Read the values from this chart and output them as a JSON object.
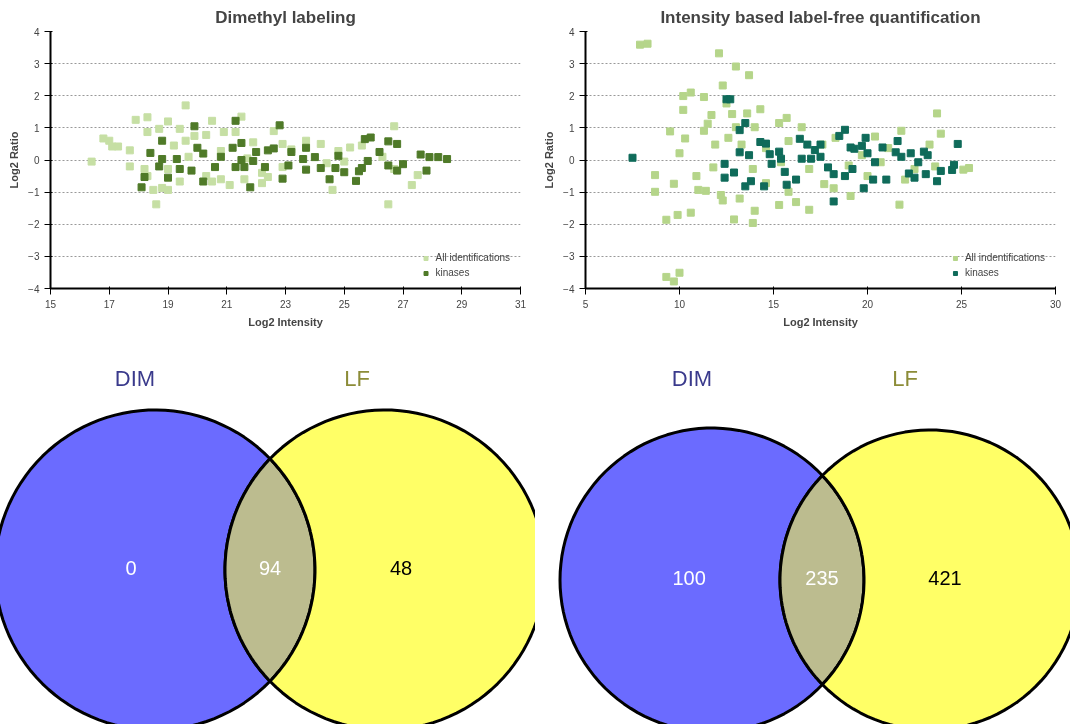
{
  "chart_data": [
    {
      "type": "scatter",
      "title": "Dimethyl labeling",
      "xlabel": "Log2 Intensity",
      "ylabel": "Log2 Ratio",
      "xlim": [
        15,
        31
      ],
      "xticks": [
        15,
        17,
        19,
        21,
        23,
        25,
        27,
        29,
        31
      ],
      "ylim": [
        -4,
        4
      ],
      "yticks": [
        -4,
        -3,
        -2,
        -1,
        0,
        1,
        2,
        3,
        4
      ],
      "grid": "y",
      "legend": "bottom right",
      "marker": "square",
      "series": [
        {
          "name": "All identifications",
          "color": "#c6dfa4",
          "x": [
            16.4,
            16.8,
            17.0,
            17.1,
            17.3,
            17.7,
            17.7,
            17.9,
            18.3,
            18.3,
            18.7,
            18.6,
            18.5,
            18.8,
            19.0,
            19.0,
            19.4,
            19.6,
            19.4,
            19.6,
            19.9,
            20.3,
            20.5,
            20.3,
            20.5,
            20.8,
            20.9,
            21.1,
            21.3,
            21.5,
            21.6,
            21.9,
            22.2,
            22.4,
            22.6,
            22.9,
            22.9,
            23.2,
            23.7,
            24.2,
            24.6,
            24.8,
            25.0,
            25.2,
            25.6,
            26.3,
            26.5,
            26.7,
            26.7,
            27.5,
            27.3,
            18.2,
            18.3,
            19.0,
            19.2,
            19.7,
            20.8,
            21.7,
            22.2,
            24.4
          ],
          "values": [
            -0.05,
            0.67,
            0.6,
            0.42,
            0.42,
            0.3,
            -0.2,
            1.25,
            1.33,
            0.87,
            0.97,
            -1.38,
            -0.93,
            -0.87,
            -0.93,
            1.2,
            0.97,
            1.7,
            -0.67,
            0.6,
            0.75,
            0.78,
            1.22,
            -0.5,
            -0.67,
            -0.6,
            0.87,
            -0.78,
            0.87,
            1.35,
            -0.6,
            0.55,
            -0.72,
            -0.53,
            0.9,
            0.5,
            -0.22,
            0.33,
            0.6,
            0.5,
            -0.93,
            0.28,
            -0.05,
            0.39,
            0.45,
            0.1,
            -1.38,
            1.05,
            -0.28,
            -0.47,
            -0.78,
            -0.28,
            -0.5,
            -0.28,
            0.45,
            0.1,
            0.28,
            0.05,
            -0.4,
            -0.1
          ]
        },
        {
          "name": "kinases",
          "color": "#4f7a28",
          "x": [
            18.1,
            18.2,
            18.4,
            18.8,
            18.7,
            18.8,
            19.0,
            19.3,
            19.4,
            19.9,
            19.8,
            20.0,
            20.2,
            20.2,
            20.6,
            20.8,
            21.2,
            21.3,
            21.3,
            21.5,
            21.5,
            21.6,
            21.8,
            21.9,
            22.0,
            22.3,
            22.4,
            22.6,
            22.8,
            22.9,
            23.1,
            23.2,
            23.6,
            23.7,
            23.7,
            24.0,
            24.2,
            24.5,
            24.7,
            24.8,
            25.0,
            25.4,
            25.5,
            25.6,
            25.7,
            25.9,
            25.8,
            26.2,
            26.5,
            26.5,
            26.8,
            26.8,
            27.0,
            27.6,
            27.8,
            27.9,
            28.2,
            28.5
          ],
          "values": [
            -0.85,
            -0.53,
            0.22,
            0.6,
            -0.2,
            0.03,
            -0.55,
            0.03,
            -0.28,
            1.05,
            -0.33,
            0.38,
            0.2,
            -0.67,
            -0.22,
            0.1,
            0.38,
            1.22,
            -0.22,
            0.53,
            0.0,
            -0.22,
            -0.85,
            -0.03,
            0.25,
            -0.22,
            0.3,
            0.36,
            1.08,
            -0.58,
            -0.17,
            0.25,
            0.03,
            0.38,
            -0.3,
            0.09,
            -0.25,
            -0.6,
            -0.25,
            0.13,
            -0.38,
            -0.65,
            -0.35,
            -0.25,
            0.65,
            0.7,
            -0.03,
            0.25,
            0.58,
            -0.17,
            0.5,
            -0.33,
            -0.13,
            0.17,
            -0.33,
            0.09,
            0.09,
            0.03
          ]
        }
      ]
    },
    {
      "type": "scatter",
      "title": "Intensity based label-free quantification",
      "xlabel": "Log2 Intensity",
      "ylabel": "Log2 Ratio",
      "xlim": [
        5,
        30
      ],
      "xticks": [
        5,
        10,
        15,
        20,
        25,
        30
      ],
      "ylim": [
        -4,
        4
      ],
      "yticks": [
        -4,
        -3,
        -2,
        -1,
        0,
        1,
        2,
        3,
        4
      ],
      "grid": "y",
      "legend": "bottom right",
      "marker": "square",
      "series": [
        {
          "name": "All indentifications",
          "color": "#b5d58a",
          "x": [
            7.9,
            8.3,
            8.7,
            8.7,
            9.3,
            9.3,
            9.7,
            10.0,
            9.9,
            9.5,
            9.7,
            10.0,
            10.2,
            10.2,
            10.3,
            10.6,
            10.6,
            10.9,
            11.0,
            11.3,
            11.3,
            11.4,
            11.5,
            11.7,
            11.8,
            12.1,
            12.3,
            12.5,
            12.2,
            12.3,
            12.8,
            13.0,
            12.9,
            13.2,
            13.7,
            13.9,
            14.0,
            14.3,
            13.6,
            15.3,
            15.7,
            15.3,
            16.2,
            16.9,
            16.5,
            15.8,
            19.1,
            21.7,
            21.8,
            20.4,
            23.7,
            23.9,
            23.3,
            25.1,
            25.4,
            23.6,
            22.0,
            18.2,
            17.7,
            11.9,
            12.6,
            13.3,
            13.9,
            14.6,
            14.6,
            15.4,
            15.8,
            16.9,
            17.6,
            18.3,
            19.0,
            19.7,
            20.0,
            20.7,
            21.1,
            22.5,
            13.0,
            14.0
          ],
          "values": [
            3.59,
            3.62,
            -0.47,
            -0.99,
            -1.86,
            -3.64,
            -3.78,
            -3.51,
            -1.71,
            0.89,
            -0.74,
            0.21,
            1.99,
            1.56,
            0.67,
            2.1,
            -1.64,
            -0.5,
            -0.93,
            1.96,
            0.91,
            -0.96,
            1.13,
            1.4,
            -0.23,
            3.32,
            2.32,
            1.76,
            -1.09,
            -1.26,
            1.43,
            2.91,
            -1.85,
            -1.2,
            2.64,
            -1.96,
            -1.58,
            1.58,
            1.45,
            1.15,
            1.31,
            -1.4,
            -1.31,
            -1.55,
            1.02,
            -0.99,
            -1.12,
            -1.39,
            0.91,
            0.73,
            1.45,
            0.82,
            0.48,
            -0.3,
            -0.25,
            -0.2,
            -0.61,
            -0.88,
            -0.75,
            0.48,
            0.69,
            0.48,
            -0.28,
            0.37,
            -0.72,
            -0.07,
            0.59,
            -0.28,
            0.48,
            0.69,
            -0.17,
            0.15,
            -0.5,
            -0.07,
            0.37,
            -0.28,
            1.02,
            1.02
          ]
        },
        {
          "name": "kinases",
          "color": "#0f6b5a",
          "x": [
            7.5,
            12.5,
            12.7,
            13.5,
            13.2,
            13.2,
            13.5,
            12.4,
            12.4,
            12.9,
            13.8,
            14.3,
            14.6,
            14.5,
            14.8,
            14.9,
            15.3,
            15.6,
            15.7,
            16.2,
            16.4,
            16.8,
            17.2,
            17.5,
            17.5,
            17.9,
            18.2,
            18.2,
            18.5,
            18.8,
            18.8,
            19.1,
            19.2,
            19.3,
            19.7,
            19.8,
            19.9,
            20.0,
            20.4,
            20.3,
            20.8,
            21.0,
            21.5,
            21.6,
            21.8,
            22.2,
            22.3,
            22.5,
            22.7,
            23.0,
            23.1,
            23.2,
            23.7,
            23.9,
            24.5,
            24.6,
            24.8,
            13.7,
            15.4,
            16.5,
            17.0
          ],
          "values": [
            0.07,
            1.89,
            1.89,
            1.15,
            0.93,
            0.24,
            -0.82,
            -0.12,
            -0.55,
            -0.39,
            -0.66,
            0.56,
            0.51,
            -0.82,
            0.18,
            -0.12,
            0.26,
            -0.37,
            -0.77,
            -0.61,
            0.66,
            0.48,
            0.31,
            0.1,
            0.48,
            -0.23,
            -1.29,
            -0.44,
            0.75,
            0.94,
            -0.5,
            0.39,
            -0.28,
            0.35,
            0.44,
            -0.88,
            0.69,
            0.21,
            -0.07,
            -0.61,
            0.39,
            -0.61,
            0.24,
            0.59,
            0.1,
            -0.42,
            0.21,
            -0.55,
            -0.07,
            0.26,
            -0.44,
            0.15,
            -0.66,
            -0.34,
            -0.31,
            -0.15,
            0.5,
            0.15,
            0.04,
            0.04,
            0.04
          ]
        }
      ]
    },
    {
      "type": "other",
      "categories": [
        null,
        null,
        null
      ],
      "values": [
        0,
        94,
        48
      ],
      "colors": [
        "#6b6bff",
        "#bcbc8f",
        "#ffff66"
      ],
      "data_labels": true,
      "annotations": [
        "DIM",
        "LF"
      ]
    },
    {
      "type": "other",
      "categories": [
        null,
        null,
        null
      ],
      "values": [
        100,
        235,
        421
      ],
      "colors": [
        "#6b6bff",
        "#bcbc8f",
        "#ffff66"
      ],
      "data_labels": true,
      "annotations": [
        "DIM",
        "LF"
      ]
    }
  ]
}
